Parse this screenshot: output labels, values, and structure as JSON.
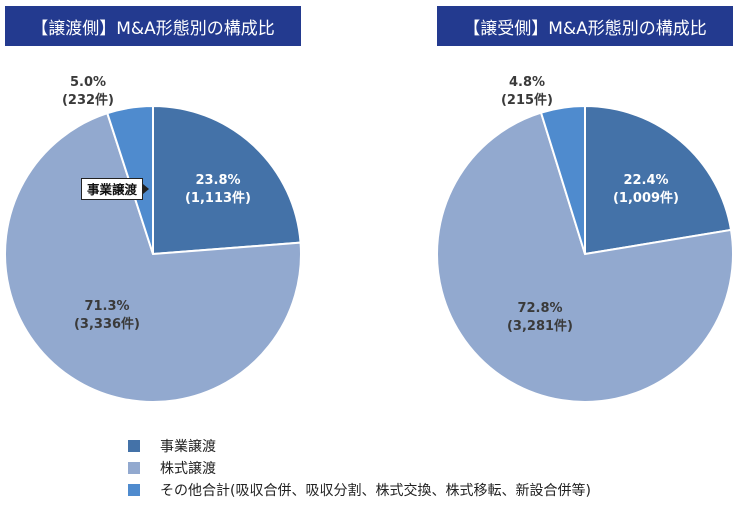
{
  "titles": {
    "left": "【譲渡側】M&A形態別の構成比",
    "right": "【譲受側】M&A形態別の構成比"
  },
  "colors": {
    "business_transfer": "#4472a8",
    "share_transfer": "#92a9cf",
    "other": "#4f8bce",
    "title_bg": "#233a8f"
  },
  "left": {
    "slices": [
      {
        "pct": "23.8%",
        "count": "(1,113件)"
      },
      {
        "pct": "71.3%",
        "count": "(3,336件)"
      },
      {
        "pct": "5.0%",
        "count": "(232件)"
      }
    ],
    "callout": "事業譲渡"
  },
  "right": {
    "slices": [
      {
        "pct": "22.4%",
        "count": "(1,009件)"
      },
      {
        "pct": "72.8%",
        "count": "(3,281件)"
      },
      {
        "pct": "4.8%",
        "count": "(215件)"
      }
    ]
  },
  "legend": [
    {
      "label": "事業譲渡"
    },
    {
      "label": "株式譲渡"
    },
    {
      "label": "その他合計(吸収合併、吸収分割、株式交換、株式移転、新設合併等)"
    }
  ],
  "chart_data": [
    {
      "type": "pie",
      "title": "【譲渡側】M&A形態別の構成比",
      "categories": [
        "事業譲渡",
        "株式譲渡",
        "その他合計(吸収合併、吸収分割、株式交換、株式移転、新設合併等)"
      ],
      "values": [
        23.8,
        71.3,
        5.0
      ],
      "counts": [
        1113,
        3336,
        232
      ],
      "unit": "件",
      "start_angle": "12 o'clock, clockwise",
      "legend_position": "bottom",
      "annotations": [
        "事業譲渡 (callout box)"
      ]
    },
    {
      "type": "pie",
      "title": "【譲受側】M&A形態別の構成比",
      "categories": [
        "事業譲渡",
        "株式譲渡",
        "その他合計(吸収合併、吸収分割、株式交換、株式移転、新設合併等)"
      ],
      "values": [
        22.4,
        72.8,
        4.8
      ],
      "counts": [
        1009,
        3281,
        215
      ],
      "unit": "件",
      "start_angle": "12 o'clock, clockwise",
      "legend_position": "bottom"
    }
  ]
}
